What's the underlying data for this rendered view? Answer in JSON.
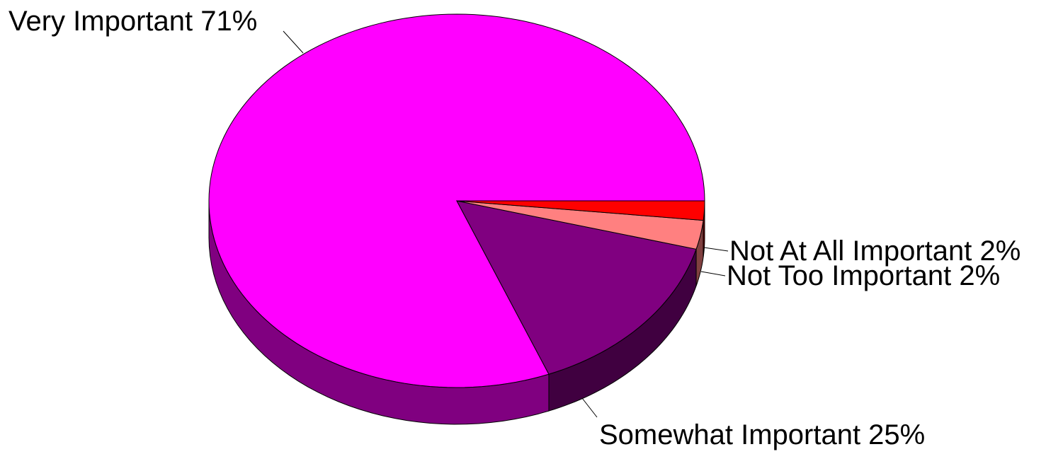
{
  "chart_data": {
    "type": "pie",
    "title": "",
    "slices": [
      {
        "name": "Very Important",
        "value": 71,
        "label": "Very Important  71%",
        "color": "#FF00FF",
        "side_color": "#800080"
      },
      {
        "name": "Somewhat Important",
        "value": 25,
        "label": "Somewhat Important  25%",
        "color": "#800080",
        "side_color": "#400040"
      },
      {
        "name": "Not Too Important",
        "value": 2,
        "label": "Not Too Important  2%",
        "color": "#FF8080",
        "side_color": "#804040"
      },
      {
        "name": "Not At All Important",
        "value": 2,
        "label": "Not At All Important  2%",
        "color": "#FF0000",
        "side_color": "#800000"
      }
    ]
  }
}
